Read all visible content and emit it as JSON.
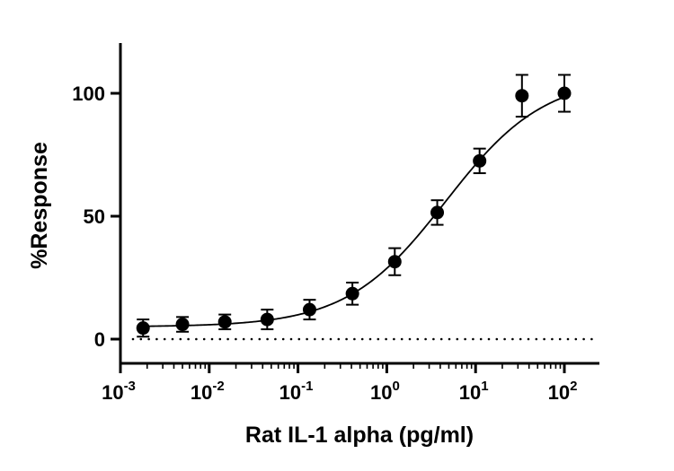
{
  "chart_data": {
    "type": "scatter",
    "title": "",
    "xlabel": "Rat IL-1 alpha (pg/ml)",
    "ylabel": "%Response",
    "x_scale": "log",
    "xlim": [
      0.001,
      100
    ],
    "ylim": [
      -10,
      120
    ],
    "x_ticks": [
      {
        "value": 0.001,
        "base": "10",
        "exp": "-3"
      },
      {
        "value": 0.01,
        "base": "10",
        "exp": "-2"
      },
      {
        "value": 0.1,
        "base": "10",
        "exp": "-1"
      },
      {
        "value": 1,
        "base": "10",
        "exp": "0"
      },
      {
        "value": 10,
        "base": "10",
        "exp": "1"
      },
      {
        "value": 100,
        "base": "10",
        "exp": "2"
      }
    ],
    "y_ticks": [
      {
        "value": 0,
        "label": "0"
      },
      {
        "value": 50,
        "label": "50"
      },
      {
        "value": 100,
        "label": "100"
      }
    ],
    "grid": false,
    "baseline": {
      "y": 0,
      "style": "dotted"
    },
    "series": [
      {
        "points": [
          {
            "x": 0.0018,
            "y": 4.5,
            "err": 3.5
          },
          {
            "x": 0.005,
            "y": 6,
            "err": 3
          },
          {
            "x": 0.015,
            "y": 7,
            "err": 3
          },
          {
            "x": 0.045,
            "y": 8,
            "err": 4
          },
          {
            "x": 0.135,
            "y": 12,
            "err": 4
          },
          {
            "x": 0.41,
            "y": 18.5,
            "err": 4.5
          },
          {
            "x": 1.23,
            "y": 31.5,
            "err": 5.5
          },
          {
            "x": 3.7,
            "y": 51.5,
            "err": 5
          },
          {
            "x": 11.1,
            "y": 72.5,
            "err": 5
          },
          {
            "x": 33.3,
            "y": 99,
            "err": 8.5
          },
          {
            "x": 100,
            "y": 100,
            "err": 7.5
          }
        ],
        "fit": {
          "model": "4PL",
          "bottom": 5,
          "top": 107,
          "ec50": 4.6,
          "hill": 0.78,
          "x_range": [
            0.0018,
            100
          ]
        }
      }
    ]
  }
}
